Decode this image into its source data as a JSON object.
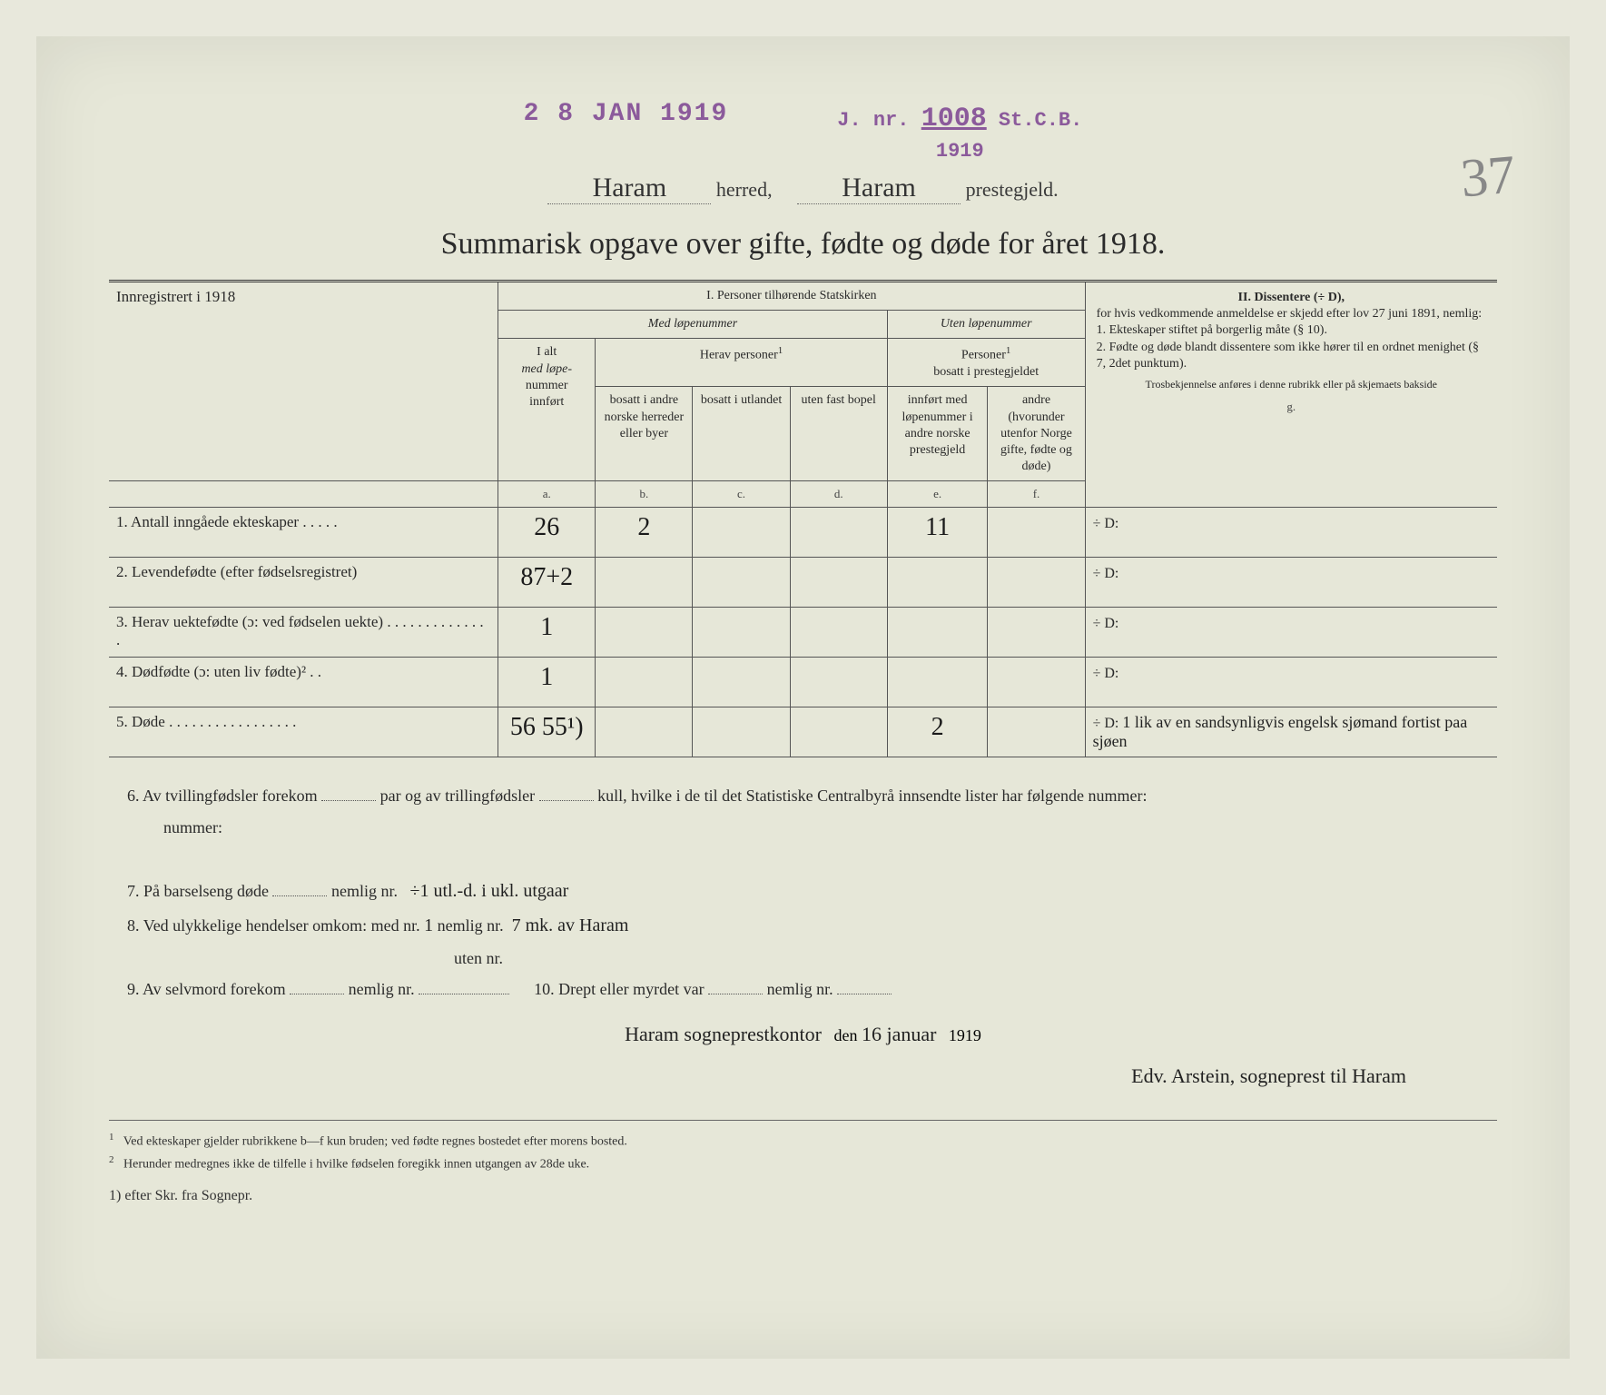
{
  "stamps": {
    "date": "2 8 JAN 1919",
    "jnr_prefix": "J. nr.",
    "jnr_num": "1008",
    "jnr_suffix": "St.C.B.",
    "jnr_year": "1919"
  },
  "page_number": "37",
  "header": {
    "herred_value": "Haram",
    "herred_label": "herred,",
    "prestegjeld_value": "Haram",
    "prestegjeld_label": "prestegjeld."
  },
  "title": "Summarisk opgave over gifte, fødte og døde for året 1918.",
  "section_headers": {
    "left_top": "Innregistrert i 1918",
    "section_I": "I.  Personer tilhørende Statskirken",
    "med_lopenummer": "Med løpenummer",
    "uten_lopenummer": "Uten løpenummer",
    "herav_personer": "Herav personer",
    "personer_bosatt": "Personer",
    "bosatt_prestegjeldet": "bosatt i prestegjeldet",
    "col_a_label": "I alt",
    "col_a_label2": "med løpe-",
    "col_a_label3": "nummer",
    "col_a_label4": "innført",
    "col_b": "bosatt i andre norske herreder eller byer",
    "col_c": "bosatt i utlandet",
    "col_d": "uten fast bopel",
    "col_e": "innført med løpenummer i andre norske prestegjeld",
    "col_f": "andre (hvorunder utenfor Norge gifte, fødte og døde)",
    "section_II_title": "II.  Dissentere (÷ D),",
    "section_II_text": "for hvis vedkommende anmeldelse er skjedd efter lov 27 juni 1891, nemlig:",
    "section_II_item1": "1. Ekteskaper stiftet på borgerlig måte (§ 10).",
    "section_II_item2": "2. Fødte og døde blandt dissentere som ikke hører til en ordnet menighet (§ 7, 2det punktum).",
    "section_II_note": "Trosbekjennelse anføres i denne rubrikk eller på skjemaets bakside",
    "letters": {
      "a": "a.",
      "b": "b.",
      "c": "c.",
      "d": "d.",
      "e": "e.",
      "f": "f.",
      "g": "g."
    },
    "sup1": "1"
  },
  "rows": [
    {
      "num": "1.",
      "label": "Antall inngåede ekteskaper . . . . .",
      "a": "26",
      "b": "2",
      "c": "",
      "d": "",
      "e": "11",
      "f": "",
      "g_prefix": "÷ D:",
      "g_text": ""
    },
    {
      "num": "2.",
      "label": "Levendefødte (efter fødselsregistret)",
      "a": "87+2",
      "b": "",
      "c": "",
      "d": "",
      "e": "",
      "f": "",
      "g_prefix": "÷ D:",
      "g_text": ""
    },
    {
      "num": "3.",
      "label": "Herav uektefødte (ɔ: ved fødselen uekte) . . . . . . . . . . . . . .",
      "a": "1",
      "b": "",
      "c": "",
      "d": "",
      "e": "",
      "f": "",
      "g_prefix": "÷ D:",
      "g_text": ""
    },
    {
      "num": "4.",
      "label": "Dødfødte (ɔ: uten liv fødte)² . .",
      "a": "1",
      "b": "",
      "c": "",
      "d": "",
      "e": "",
      "f": "",
      "g_prefix": "÷ D:",
      "g_text": ""
    },
    {
      "num": "5.",
      "label": "Døde . . . . . . . . . . . . . . . . .",
      "a": "56 55¹)",
      "b": "",
      "c": "",
      "d": "",
      "e": "2",
      "f": "",
      "g_prefix": "÷ D:",
      "g_text": "1 lik av en sandsynligvis engelsk sjømand fortist paa sjøen"
    }
  ],
  "lower": {
    "q6": "Av tvillingfødsler forekom",
    "q6_mid": "par og av trillingfødsler",
    "q6_end": "kull, hvilke i de til det Statistiske Centralbyrå innsendte lister har følgende nummer:",
    "q7": "På barselseng døde",
    "q7_mid": "nemlig nr.",
    "q7_hw": "÷1   utl.-d. i ukl. utgaar",
    "q8": "Ved ulykkelige hendelser omkom:  med nr.",
    "q8_val": "1",
    "q8_mid": "nemlig nr.",
    "q8_hw": "7 mk. av Haram",
    "q8_uten": "uten nr.",
    "q9": "Av selvmord forekom",
    "q9_mid": "nemlig nr.",
    "q10": "10.  Drept eller myrdet var",
    "q10_mid": "nemlig nr."
  },
  "signature": {
    "place_hw": "Haram sogneprestkontor",
    "den": "den",
    "date_hw": "16 januar",
    "year": "1919",
    "signer_hw": "Edv. Arstein, sogneprest til Haram"
  },
  "footnotes": {
    "f1_num": "1",
    "f1": "Ved ekteskaper gjelder rubrikkene b—f kun bruden; ved fødte regnes bostedet efter morens bosted.",
    "f2_num": "2",
    "f2": "Herunder medregnes ikke de tilfelle i hvilke fødselen foregikk innen utgangen av 28de uke.",
    "hw_note": "1) efter Skr. fra Sognepr."
  },
  "colors": {
    "paper": "#e6e7d8",
    "text": "#2a2a2a",
    "stamp": "#8b5a9b",
    "border": "#555555",
    "handwriting": "#1a1a1a"
  }
}
